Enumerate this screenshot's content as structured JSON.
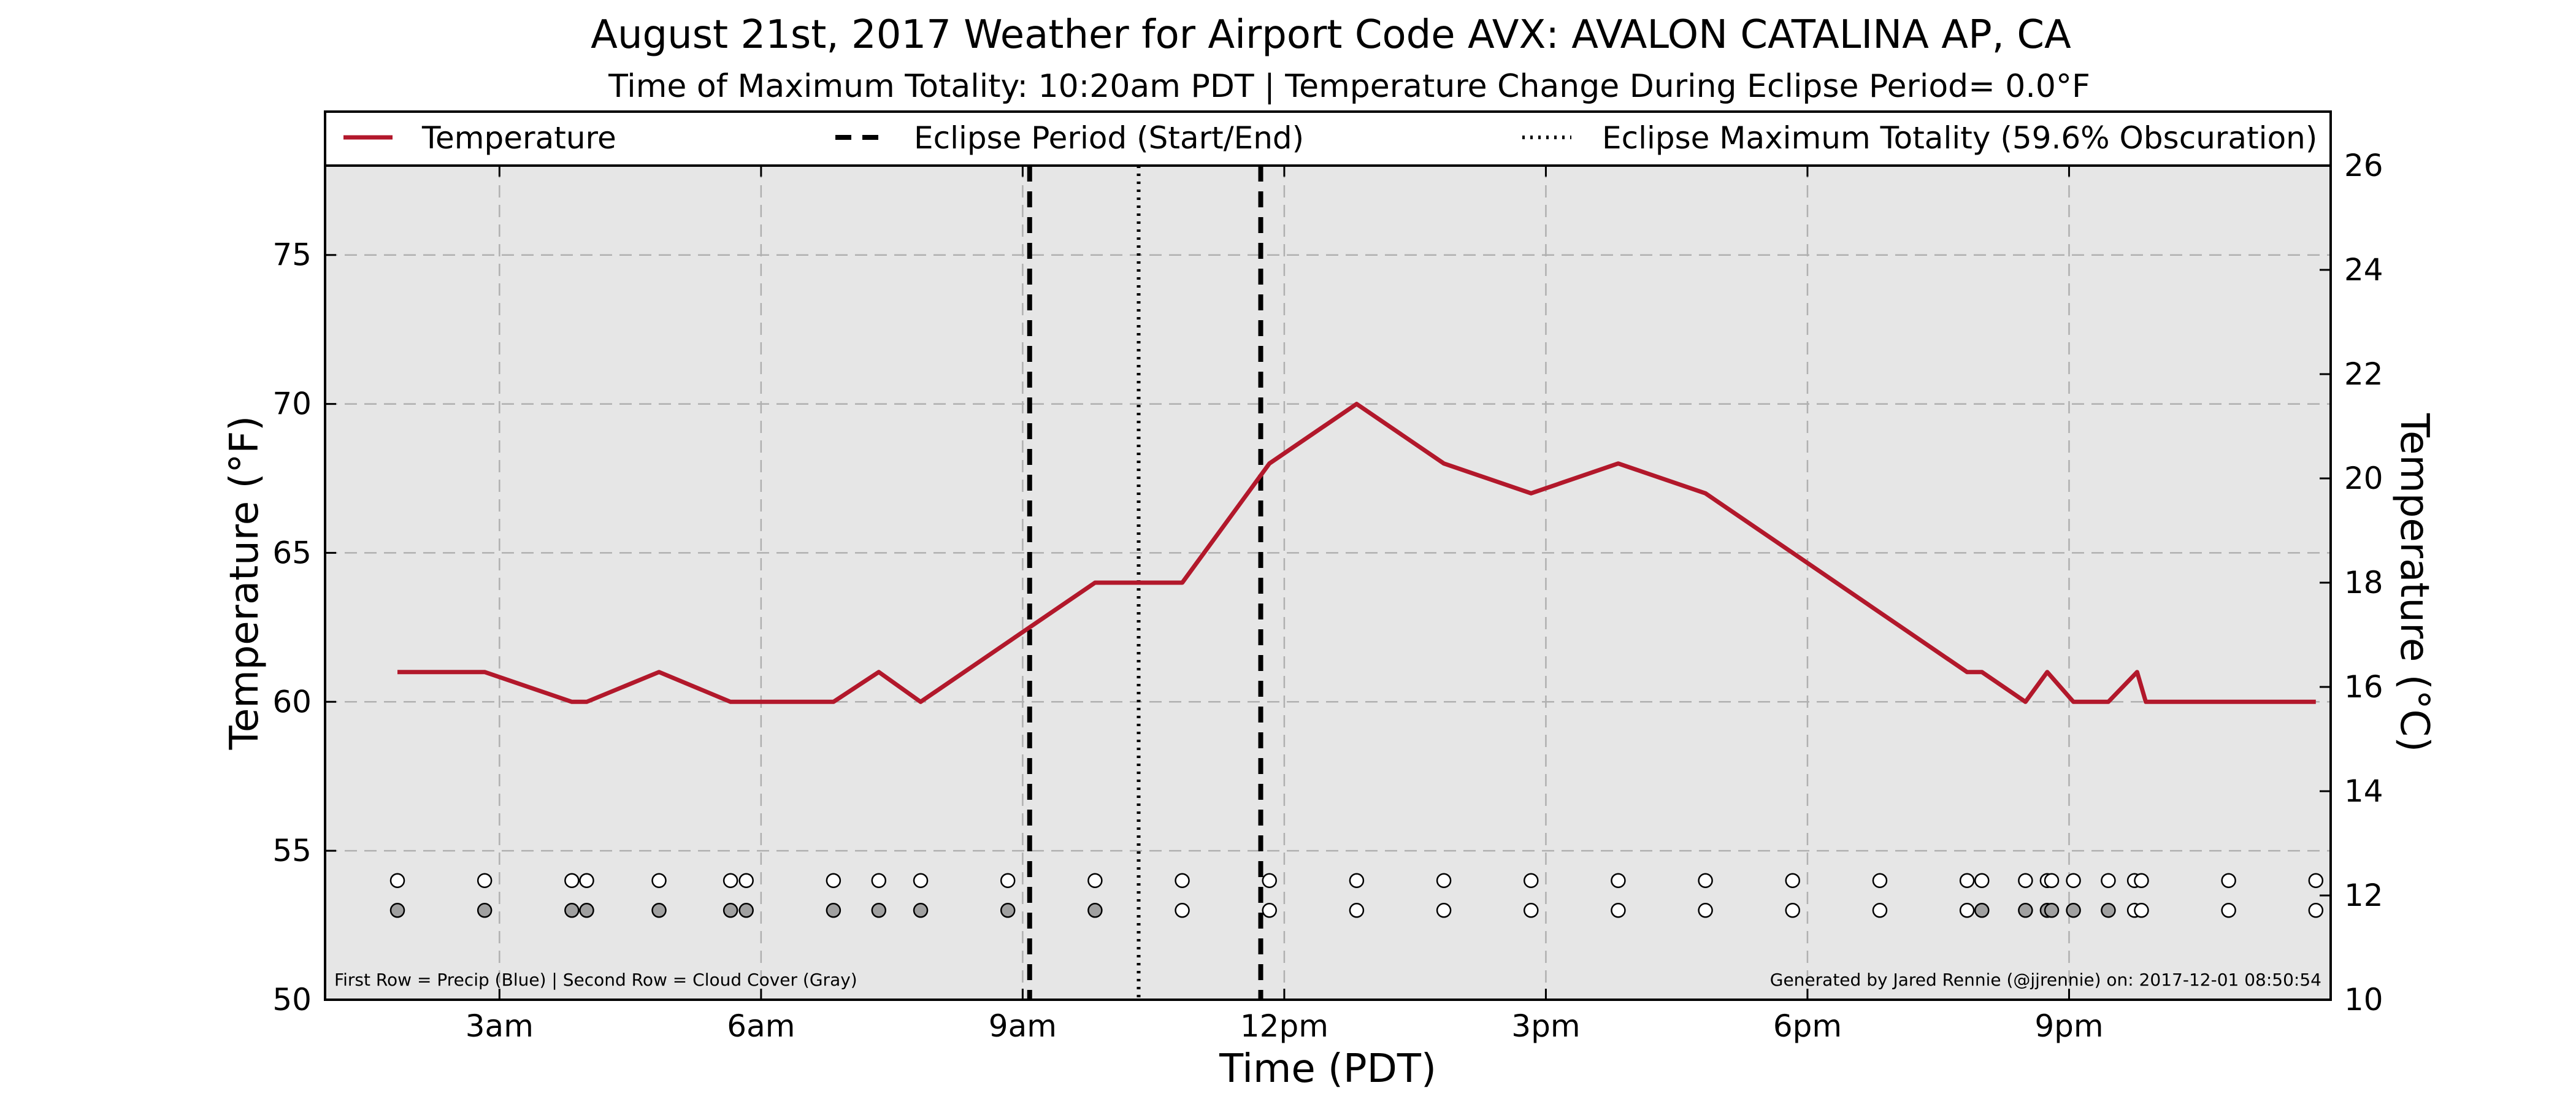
{
  "chart_data": {
    "type": "line",
    "title": "August 21st, 2017 Weather for Airport Code AVX: AVALON CATALINA AP, CA",
    "subtitle": "Time of Maximum Totality: 10:20am PDT | Temperature Change During Eclipse Period= 0.0°F",
    "xlabel": "Time (PDT)",
    "ylabel_left": "Temperature (°F)",
    "ylabel_right": "Temperature (°C)",
    "xlim": [
      1,
      24
    ],
    "ylim": [
      50,
      78
    ],
    "ylim_right": [
      10,
      26
    ],
    "grid": true,
    "legend_placement": "top",
    "x_ticks": [
      {
        "value": 3,
        "label": "3am"
      },
      {
        "value": 6,
        "label": "6am"
      },
      {
        "value": 9,
        "label": "9am"
      },
      {
        "value": 12,
        "label": "12pm"
      },
      {
        "value": 15,
        "label": "3pm"
      },
      {
        "value": 18,
        "label": "6pm"
      },
      {
        "value": 21,
        "label": "9pm"
      }
    ],
    "y_ticks_left": [
      50,
      55,
      60,
      65,
      70,
      75
    ],
    "y_ticks_right": [
      10,
      12,
      14,
      16,
      18,
      20,
      22,
      24,
      26
    ],
    "legend": [
      {
        "label": "Temperature",
        "style": "solid"
      },
      {
        "label": "Eclipse Period (Start/End)",
        "style": "dashed"
      },
      {
        "label": "Eclipse Maximum Totality (59.6% Obscuration)",
        "style": "dotted"
      }
    ],
    "series": [
      {
        "name": "Temperature",
        "color": "#b2182b",
        "points": [
          [
            1.83,
            61
          ],
          [
            2.83,
            61
          ],
          [
            3.83,
            60
          ],
          [
            4.0,
            60
          ],
          [
            4.83,
            61
          ],
          [
            5.65,
            60
          ],
          [
            5.83,
            60
          ],
          [
            6.83,
            60
          ],
          [
            7.35,
            61
          ],
          [
            7.83,
            60
          ],
          [
            8.83,
            62
          ],
          [
            9.83,
            64
          ],
          [
            10.83,
            64
          ],
          [
            11.83,
            68
          ],
          [
            12.83,
            70
          ],
          [
            13.83,
            68
          ],
          [
            14.83,
            67
          ],
          [
            15.83,
            68
          ],
          [
            16.83,
            67
          ],
          [
            17.83,
            65
          ],
          [
            18.83,
            63
          ],
          [
            19.83,
            61
          ],
          [
            20.0,
            61
          ],
          [
            20.5,
            60
          ],
          [
            20.75,
            61
          ],
          [
            21.05,
            60
          ],
          [
            21.45,
            60
          ],
          [
            21.78,
            61
          ],
          [
            21.88,
            60
          ],
          [
            23.83,
            60
          ]
        ]
      }
    ],
    "eclipse_start": 9.08,
    "eclipse_end": 11.73,
    "eclipse_max": 10.33,
    "marker_rows": {
      "precip": {
        "y": 54,
        "times": [
          1.83,
          2.83,
          3.83,
          4.0,
          4.83,
          5.65,
          5.83,
          6.83,
          7.35,
          7.83,
          8.83,
          9.83,
          10.83,
          11.83,
          12.83,
          13.83,
          14.83,
          15.83,
          16.83,
          17.83,
          18.83,
          19.83,
          20.0,
          20.5,
          20.75,
          20.8,
          21.05,
          21.45,
          21.75,
          21.83,
          22.83,
          23.83
        ],
        "colors": [
          "#ffffff",
          "#ffffff",
          "#ffffff",
          "#ffffff",
          "#ffffff",
          "#ffffff",
          "#ffffff",
          "#ffffff",
          "#ffffff",
          "#ffffff",
          "#ffffff",
          "#ffffff",
          "#ffffff",
          "#ffffff",
          "#ffffff",
          "#ffffff",
          "#ffffff",
          "#ffffff",
          "#ffffff",
          "#ffffff",
          "#ffffff",
          "#ffffff",
          "#ffffff",
          "#ffffff",
          "#ffffff",
          "#ffffff",
          "#ffffff",
          "#ffffff",
          "#ffffff",
          "#ffffff",
          "#ffffff",
          "#ffffff"
        ]
      },
      "cloud": {
        "y": 53,
        "times": [
          1.83,
          2.83,
          3.83,
          4.0,
          4.83,
          5.65,
          5.83,
          6.83,
          7.35,
          7.83,
          8.83,
          9.83,
          10.83,
          11.83,
          12.83,
          13.83,
          14.83,
          15.83,
          16.83,
          17.83,
          18.83,
          19.83,
          20.0,
          20.5,
          20.75,
          20.8,
          21.05,
          21.45,
          21.75,
          21.83,
          22.83,
          23.83
        ],
        "colors": [
          "#a0a0a0",
          "#a0a0a0",
          "#a0a0a0",
          "#a0a0a0",
          "#a0a0a0",
          "#a0a0a0",
          "#a0a0a0",
          "#a0a0a0",
          "#a0a0a0",
          "#a0a0a0",
          "#a0a0a0",
          "#a0a0a0",
          "#ffffff",
          "#ffffff",
          "#ffffff",
          "#ffffff",
          "#ffffff",
          "#ffffff",
          "#ffffff",
          "#ffffff",
          "#ffffff",
          "#ffffff",
          "#a0a0a0",
          "#a0a0a0",
          "#a0a0a0",
          "#a0a0a0",
          "#a0a0a0",
          "#a0a0a0",
          "#ffffff",
          "#ffffff",
          "#ffffff",
          "#ffffff"
        ]
      }
    },
    "annotations": {
      "bottom_left": "First Row = Precip (Blue) | Second Row = Cloud Cover (Gray)",
      "bottom_right": "Generated by Jared Rennie (@jjrennie) on: 2017-12-01 08:50:54"
    },
    "colors": {
      "plot_background": "#e6e6e6",
      "temperature_line": "#b2182b",
      "grid": "#b0b0b0"
    }
  }
}
